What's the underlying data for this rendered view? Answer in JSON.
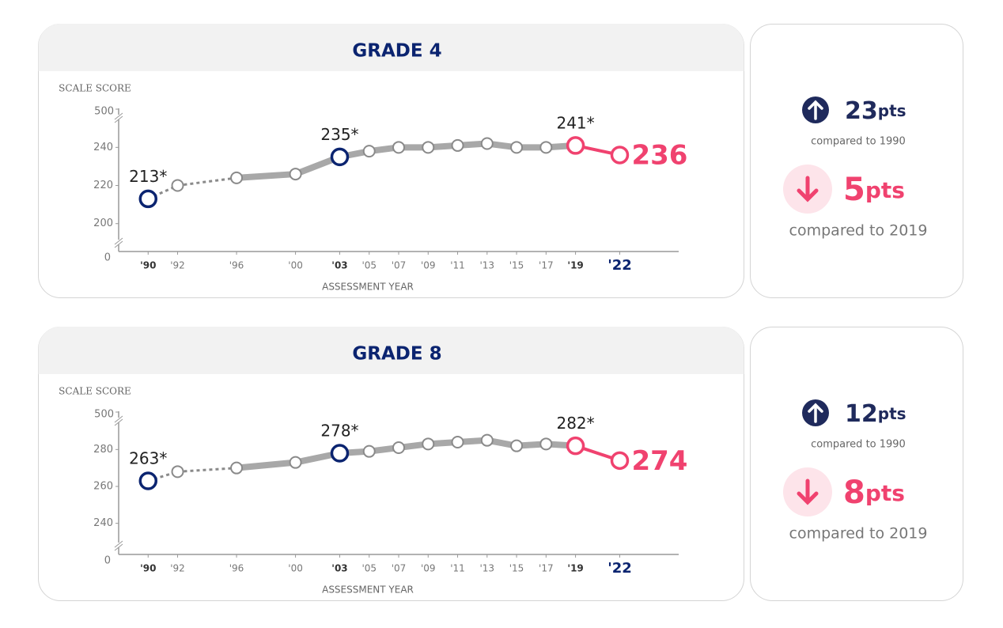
{
  "chart_data": [
    {
      "type": "line",
      "title": "GRADE 4",
      "y_label": "SCALE SCORE",
      "x_label": "ASSESSMENT YEAR",
      "x": [
        1990,
        1992,
        1996,
        2000,
        2003,
        2005,
        2007,
        2009,
        2011,
        2013,
        2015,
        2017,
        2019,
        2022
      ],
      "xlim": [
        1988,
        2026
      ],
      "xticks": [
        {
          "value": 1990,
          "label": "'90"
        },
        {
          "value": 1992,
          "label": "'92"
        },
        {
          "value": 1996,
          "label": "'96"
        },
        {
          "value": 2000,
          "label": "'00"
        },
        {
          "value": 2003,
          "label": "'03"
        },
        {
          "value": 2005,
          "label": "'05"
        },
        {
          "value": 2007,
          "label": "'07"
        },
        {
          "value": 2009,
          "label": "'09"
        },
        {
          "value": 2011,
          "label": "'11"
        },
        {
          "value": 2013,
          "label": "'13"
        },
        {
          "value": 2015,
          "label": "'15"
        },
        {
          "value": 2017,
          "label": "'17"
        },
        {
          "value": 2019,
          "label": "'19"
        },
        {
          "value": 2022,
          "label": "'22"
        }
      ],
      "ylim": [
        192,
        253
      ],
      "yticks": [
        200,
        220,
        240
      ],
      "axis_bottom": 0,
      "axis_top": 500,
      "series": [
        {
          "color": "#a8a8a8",
          "values": [
            213,
            220,
            224,
            226,
            235,
            238,
            240,
            240,
            241,
            242,
            240,
            240,
            241,
            236
          ],
          "value_labels": [
            "213*",
            null,
            null,
            null,
            "235*",
            null,
            null,
            null,
            null,
            null,
            null,
            null,
            "241*",
            "236"
          ],
          "marker_colors": [
            "#0b2470",
            "#8a8a8a",
            "#8a8a8a",
            "#8a8a8a",
            "#0b2470",
            "#8a8a8a",
            "#8a8a8a",
            "#8a8a8a",
            "#8a8a8a",
            "#8a8a8a",
            "#8a8a8a",
            "#8a8a8a",
            "#f0426f",
            "#f0426f"
          ]
        }
      ]
    },
    {
      "type": "line",
      "title": "GRADE 8",
      "y_label": "SCALE SCORE",
      "x_label": "ASSESSMENT YEAR",
      "x": [
        1990,
        1992,
        1996,
        2000,
        2003,
        2005,
        2007,
        2009,
        2011,
        2013,
        2015,
        2017,
        2019,
        2022
      ],
      "xlim": [
        1988,
        2026
      ],
      "xticks": [
        {
          "value": 1990,
          "label": "'90"
        },
        {
          "value": 1992,
          "label": "'92"
        },
        {
          "value": 1996,
          "label": "'96"
        },
        {
          "value": 2000,
          "label": "'00"
        },
        {
          "value": 2003,
          "label": "'03"
        },
        {
          "value": 2005,
          "label": "'05"
        },
        {
          "value": 2007,
          "label": "'07"
        },
        {
          "value": 2009,
          "label": "'09"
        },
        {
          "value": 2011,
          "label": "'11"
        },
        {
          "value": 2013,
          "label": "'13"
        },
        {
          "value": 2015,
          "label": "'15"
        },
        {
          "value": 2017,
          "label": "'17"
        },
        {
          "value": 2019,
          "label": "'19"
        },
        {
          "value": 2022,
          "label": "'22"
        }
      ],
      "ylim": [
        230,
        293
      ],
      "yticks": [
        240,
        260,
        280
      ],
      "axis_bottom": 0,
      "axis_top": 500,
      "series": [
        {
          "color": "#a8a8a8",
          "values": [
            263,
            268,
            270,
            273,
            278,
            279,
            281,
            283,
            284,
            285,
            282,
            283,
            282,
            274
          ],
          "value_labels": [
            "263*",
            null,
            null,
            null,
            "278*",
            null,
            null,
            null,
            null,
            null,
            null,
            null,
            "282*",
            "274"
          ],
          "marker_colors": [
            "#0b2470",
            "#8a8a8a",
            "#8a8a8a",
            "#8a8a8a",
            "#0b2470",
            "#8a8a8a",
            "#8a8a8a",
            "#8a8a8a",
            "#8a8a8a",
            "#8a8a8a",
            "#8a8a8a",
            "#8a8a8a",
            "#f0426f",
            "#f0426f"
          ]
        }
      ]
    }
  ],
  "panels": [
    {
      "up": {
        "value": 23,
        "unit": "pts",
        "caption": "compared to 1990"
      },
      "down": {
        "value": 5,
        "unit": "pts",
        "caption": "compared to 2019"
      }
    },
    {
      "up": {
        "value": 12,
        "unit": "pts",
        "caption": "compared to 1990"
      },
      "down": {
        "value": 8,
        "unit": "pts",
        "caption": "compared to 2019"
      }
    }
  ]
}
